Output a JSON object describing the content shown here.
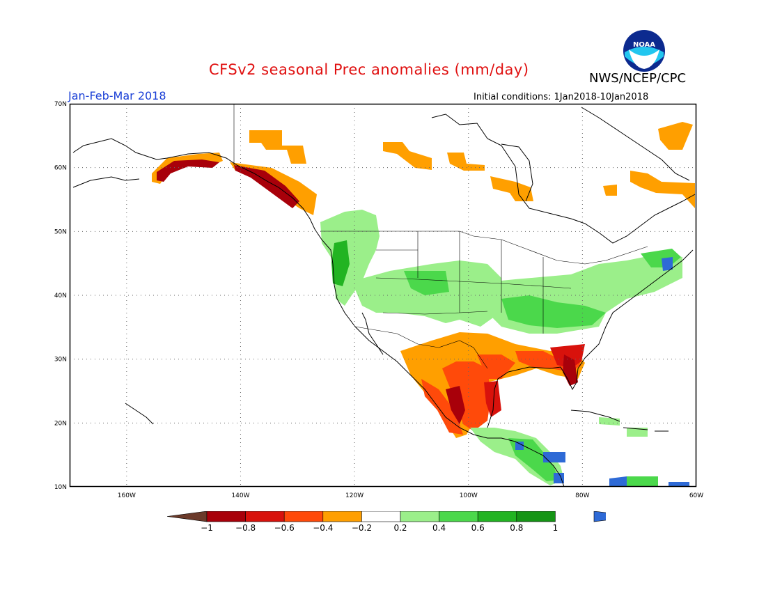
{
  "header": {
    "title": "CFSv2 seasonal Prec anomalies (mm/day)",
    "org": "NWS/NCEP/CPC",
    "season": "Jan-Feb-Mar 2018",
    "initial_conditions": "Initial conditions: 1Jan2018-10Jan2018",
    "logo_text": "NOAA"
  },
  "map": {
    "lat_labels": [
      "70N",
      "60N",
      "50N",
      "40N",
      "30N",
      "20N",
      "10N"
    ],
    "lon_labels": [
      "160W",
      "140W",
      "120W",
      "100W",
      "80W",
      "60W"
    ],
    "lat_range": [
      10,
      70
    ],
    "lon_range": [
      -170,
      -60
    ],
    "grid_lines": "dotted"
  },
  "legend": {
    "tick_labels": [
      "-1",
      "-0.8",
      "-0.6",
      "-0.4",
      "-0.2",
      "0.2",
      "0.4",
      "0.6",
      "0.8",
      "1"
    ],
    "colors": {
      "below_-1": "#6b3a2a",
      "-1_to_-0.8": "#a8000a",
      "-0.8_to_-0.6": "#d8120c",
      "-0.6_to_-0.4": "#ff4a0a",
      "-0.4_to_-0.2": "#ff9f00",
      "-0.2_to_0.2": "#ffffff",
      "0.2_to_0.4": "#9bef8a",
      "0.4_to_0.6": "#4bd84b",
      "0.6_to_0.8": "#22b422",
      "0.8_to_1": "#159515",
      "above_1": "#2e6ad6"
    }
  }
}
